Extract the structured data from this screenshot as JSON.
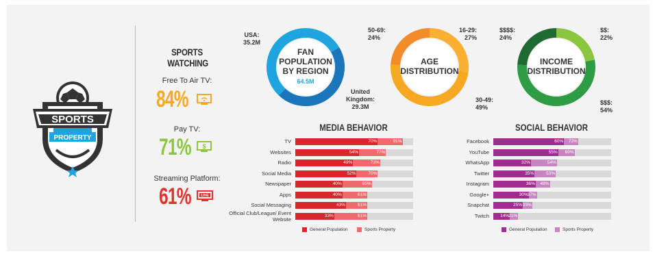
{
  "colors": {
    "red_gp": "#d7262c",
    "red_sp": "#ef6a6c",
    "purple_gp": "#a12b8f",
    "purple_sp": "#c884c0",
    "bar_bg": "#d9d9d9",
    "orange": "#f7a823",
    "red": "#e4312b",
    "green": "#8cc63f",
    "blue": "#1ea5e0"
  },
  "logo": {
    "top_text": "SPORTS",
    "bottom_text": "PROPERTY"
  },
  "sports_watching": {
    "title_line1": "SPORTS",
    "title_line2": "WATCHING",
    "items": [
      {
        "label": "Free To Air TV:",
        "value": "84%",
        "icon": "tv-wifi-icon"
      },
      {
        "label": "Pay TV:",
        "value": "71%",
        "icon": "tv-dollar-icon"
      },
      {
        "label": "Streaming Platform:",
        "value": "61%",
        "icon": "tv-live-icon",
        "badge": "LIVE"
      }
    ]
  },
  "chart_data": [
    {
      "type": "pie",
      "id": "fan-population",
      "title_lines": [
        "FAN",
        "POPULATION",
        "BY REGION"
      ],
      "center_value": "64.5M",
      "slices": [
        {
          "name": "USA:",
          "value_label": "35.2M",
          "value": 35.2
        },
        {
          "name": "United Kingdom:",
          "value_label": "29.3M",
          "value": 29.3
        }
      ]
    },
    {
      "type": "pie",
      "id": "age",
      "title_lines": [
        "AGE",
        "DISTRIBUTION"
      ],
      "slices": [
        {
          "name": "16-29:",
          "value_label": "27%",
          "value": 27
        },
        {
          "name": "30-49:",
          "value_label": "49%",
          "value": 49
        },
        {
          "name": "50-69:",
          "value_label": "24%",
          "value": 24
        }
      ]
    },
    {
      "type": "pie",
      "id": "income",
      "title_lines": [
        "INCOME",
        "DISTRIBUTION"
      ],
      "slices": [
        {
          "name": "$$:",
          "value_label": "22%",
          "value": 22
        },
        {
          "name": "$$$:",
          "value_label": "54%",
          "value": 54
        },
        {
          "name": "$$$$:",
          "value_label": "24%",
          "value": 24
        }
      ]
    },
    {
      "type": "bar",
      "id": "media",
      "title": "MEDIA BEHAVIOR",
      "xlim": [
        0,
        100
      ],
      "categories": [
        "TV",
        "Websites",
        "Radio",
        "Social Media",
        "Newspaper",
        "Apps",
        "Social Messaging",
        "Official Club/League/ Event Website"
      ],
      "series": [
        {
          "name": "General Population",
          "values": [
            70,
            54,
            49,
            52,
            40,
            40,
            43,
            33
          ]
        },
        {
          "name": "Sports Property",
          "values": [
            91,
            77,
            72,
            70,
            65,
            61,
            61,
            61
          ]
        }
      ]
    },
    {
      "type": "bar",
      "id": "social",
      "title": "SOCIAL BEHAVIOR",
      "xlim": [
        0,
        100
      ],
      "categories": [
        "Facebook",
        "YouTube",
        "WhatsApp",
        "Twitter",
        "Instagram",
        "Google+",
        "Snapchat",
        "Twitch"
      ],
      "series": [
        {
          "name": "General Population",
          "values": [
            60,
            55,
            32,
            35,
            36,
            30,
            25,
            14
          ]
        },
        {
          "name": "Sports Property",
          "values": [
            72,
            69,
            54,
            53,
            48,
            37,
            33,
            21
          ]
        }
      ]
    }
  ]
}
